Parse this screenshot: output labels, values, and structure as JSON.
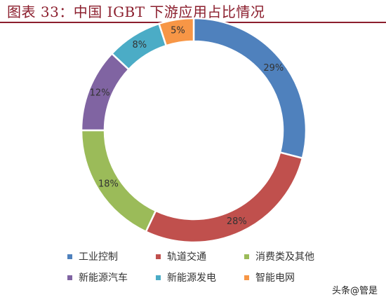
{
  "title": "图表 33：中国 IGBT 下游应用占比情况",
  "watermark": "头条@管是",
  "chart_data": {
    "type": "pie",
    "variant": "donut",
    "start_angle_deg": 0,
    "direction": "clockwise",
    "categories": [
      "工业控制",
      "轨道交通",
      "消费类及其他",
      "新能源汽车",
      "新能源发电",
      "智能电网"
    ],
    "values": [
      29,
      28,
      18,
      12,
      8,
      5
    ],
    "labels": [
      "29%",
      "28%",
      "18%",
      "12%",
      "8%",
      "5%"
    ],
    "colors": [
      "#4f81bd",
      "#c0504d",
      "#9bbb59",
      "#8064a2",
      "#4bacc6",
      "#f79646"
    ],
    "legend_position": "bottom"
  }
}
